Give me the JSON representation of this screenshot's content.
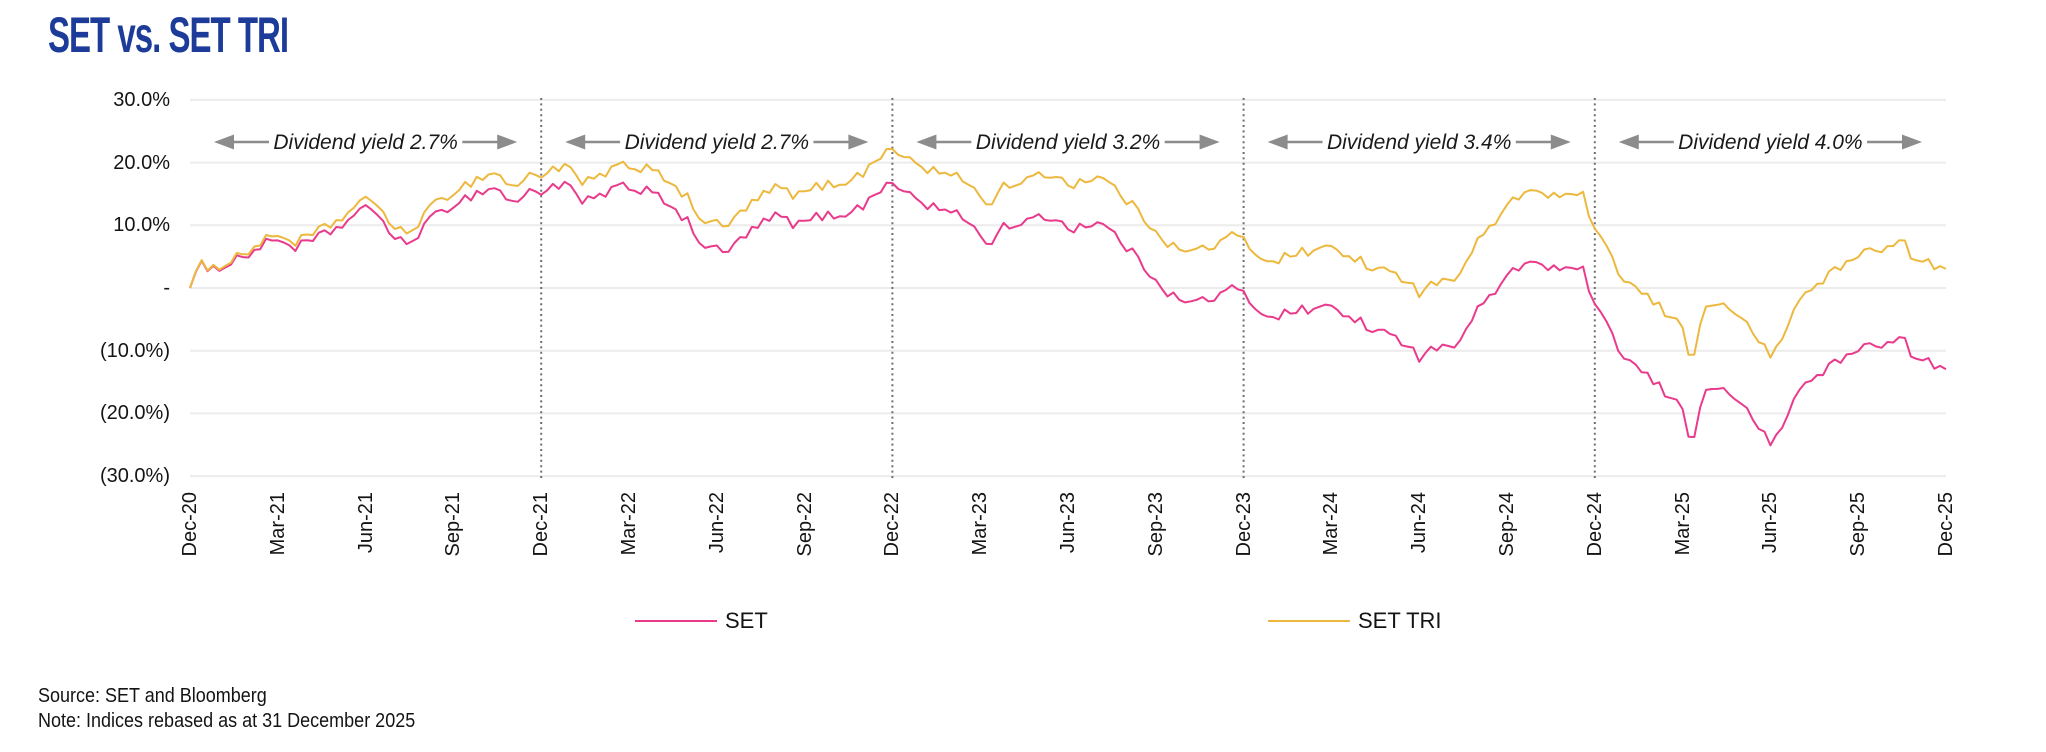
{
  "title": "SET vs. SET TRI",
  "footer": {
    "source": "Source: SET and Bloomberg",
    "note": "Note: Indices rebased as at 31 December 2025"
  },
  "legend": [
    {
      "label": "SET",
      "color": "#e93a8c"
    },
    {
      "label": "SET TRI",
      "color": "#edb83e"
    }
  ],
  "colors": {
    "title": "#1d3c99",
    "set_line": "#e93a8c",
    "set_tri_line": "#edb83e",
    "gridline": "#ececec",
    "separator": "#6e6e6e",
    "arrow": "#8c8c8c"
  },
  "chart_data": {
    "type": "line",
    "title": "SET vs. SET TRI",
    "x_unit": "months since Dec-2020",
    "x_range_months": [
      0,
      60
    ],
    "ylim": [
      -30,
      30
    ],
    "grid": "horizontal",
    "legend_position": "bottom",
    "y_ticks": [
      {
        "label": "30.0%",
        "value": 30
      },
      {
        "label": "20.0%",
        "value": 20
      },
      {
        "label": "10.0%",
        "value": 10
      },
      {
        "label": "-",
        "value": 0
      },
      {
        "label": "(10.0%)",
        "value": -10
      },
      {
        "label": "(20.0%)",
        "value": -20
      },
      {
        "label": "(30.0%)",
        "value": -30
      }
    ],
    "x_tick_labels": [
      "Dec-20",
      "Mar-21",
      "Jun-21",
      "Sep-21",
      "Dec-21",
      "Mar-22",
      "Jun-22",
      "Sep-22",
      "Dec-22",
      "Mar-23",
      "Jun-23",
      "Sep-23",
      "Dec-23",
      "Mar-24",
      "Jun-24",
      "Sep-24",
      "Dec-24",
      "Mar-25",
      "Jun-25",
      "Sep-25",
      "Dec-25"
    ],
    "separators_months": [
      12,
      24,
      36,
      48
    ],
    "annotations": [
      {
        "label": "Dividend yield 2.7%",
        "from_month": 0,
        "to_month": 12
      },
      {
        "label": "Dividend yield 2.7%",
        "from_month": 12,
        "to_month": 24
      },
      {
        "label": "Dividend yield 3.2%",
        "from_month": 24,
        "to_month": 36
      },
      {
        "label": "Dividend yield 3.4%",
        "from_month": 36,
        "to_month": 48
      },
      {
        "label": "Dividend yield 4.0%",
        "from_month": 48,
        "to_month": 60
      }
    ],
    "series": [
      {
        "name": "SET",
        "color": "#e93a8c",
        "points": [
          [
            0,
            0
          ],
          [
            0.3,
            5
          ],
          [
            0.6,
            2
          ],
          [
            1,
            3.5
          ],
          [
            2,
            5.5
          ],
          [
            3,
            8
          ],
          [
            3.5,
            6.5
          ],
          [
            4,
            7
          ],
          [
            5,
            9.5
          ],
          [
            5.8,
            12
          ],
          [
            6.3,
            13
          ],
          [
            7,
            7.5
          ],
          [
            7.5,
            7
          ],
          [
            8,
            10
          ],
          [
            9,
            13.5
          ],
          [
            10,
            15.5
          ],
          [
            10.5,
            16
          ],
          [
            11,
            13.5
          ],
          [
            11.7,
            15.5
          ],
          [
            12,
            15.5
          ],
          [
            12.5,
            16.5
          ],
          [
            13,
            16
          ],
          [
            13.4,
            13.5
          ],
          [
            14,
            14.5
          ],
          [
            14.7,
            16.5
          ],
          [
            15,
            15
          ],
          [
            15.5,
            16
          ],
          [
            16,
            15.5
          ],
          [
            16.5,
            12
          ],
          [
            17,
            10.5
          ],
          [
            17.5,
            7
          ],
          [
            18,
            6
          ],
          [
            18.3,
            5.5
          ],
          [
            19,
            8.5
          ],
          [
            20,
            11.5
          ],
          [
            20.8,
            10
          ],
          [
            21.5,
            11.5
          ],
          [
            22,
            11.5
          ],
          [
            23,
            13
          ],
          [
            23.8,
            17
          ],
          [
            24,
            16
          ],
          [
            24.5,
            15.5
          ],
          [
            25,
            13.5
          ],
          [
            26,
            12
          ],
          [
            26.5,
            11
          ],
          [
            27,
            9
          ],
          [
            27.3,
            5.5
          ],
          [
            27.6,
            9.5
          ],
          [
            28,
            10
          ],
          [
            29,
            11
          ],
          [
            29.5,
            11.5
          ],
          [
            30,
            9.5
          ],
          [
            31,
            10.5
          ],
          [
            31.5,
            9
          ],
          [
            32,
            6.5
          ],
          [
            33,
            1.5
          ],
          [
            33.5,
            -1
          ],
          [
            34,
            -2.5
          ],
          [
            35,
            -1.5
          ],
          [
            35.7,
            0
          ],
          [
            36,
            -1
          ],
          [
            36.5,
            -3.5
          ],
          [
            37,
            -4.5
          ],
          [
            38,
            -3.5
          ],
          [
            39,
            -3
          ],
          [
            39.5,
            -4.5
          ],
          [
            40,
            -5
          ],
          [
            40.3,
            -8
          ],
          [
            41,
            -6.5
          ],
          [
            42,
            -11
          ],
          [
            42.5,
            -9
          ],
          [
            43,
            -10
          ],
          [
            43.5,
            -7
          ],
          [
            44,
            -3.5
          ],
          [
            45,
            1.5
          ],
          [
            45.7,
            4.5
          ],
          [
            46,
            4
          ],
          [
            47,
            2.5
          ],
          [
            47.5,
            4
          ],
          [
            48,
            -3
          ],
          [
            49,
            -11
          ],
          [
            50,
            -15
          ],
          [
            50.7,
            -18
          ],
          [
            51,
            -19
          ],
          [
            51.3,
            -25
          ],
          [
            51.8,
            -16
          ],
          [
            52,
            -16.5
          ],
          [
            52.4,
            -15.5
          ],
          [
            53,
            -19
          ],
          [
            53.5,
            -21
          ],
          [
            54,
            -25.5
          ],
          [
            54.3,
            -23
          ],
          [
            55,
            -16
          ],
          [
            56,
            -12.5
          ],
          [
            57,
            -10
          ],
          [
            57.5,
            -8.5
          ],
          [
            58,
            -9
          ],
          [
            58.5,
            -8
          ],
          [
            59,
            -11.5
          ],
          [
            59.5,
            -12
          ],
          [
            60,
            -13
          ]
        ]
      },
      {
        "name": "SET TRI",
        "color": "#edb83e",
        "points": [
          [
            0,
            0
          ],
          [
            0.3,
            5.1
          ],
          [
            0.6,
            2.1
          ],
          [
            1,
            3.7
          ],
          [
            2,
            6
          ],
          [
            3,
            8.7
          ],
          [
            3.5,
            7.3
          ],
          [
            4,
            7.9
          ],
          [
            5,
            10.6
          ],
          [
            5.8,
            13.3
          ],
          [
            6.3,
            14.4
          ],
          [
            7,
            9.1
          ],
          [
            7.5,
            8.7
          ],
          [
            8,
            11.8
          ],
          [
            9,
            15.5
          ],
          [
            10,
            17.8
          ],
          [
            10.5,
            18.4
          ],
          [
            11,
            16
          ],
          [
            11.7,
            18.1
          ],
          [
            12,
            18.2
          ],
          [
            12.5,
            19.3
          ],
          [
            13,
            18.9
          ],
          [
            13.4,
            16.5
          ],
          [
            14,
            17.7
          ],
          [
            14.7,
            19.8
          ],
          [
            15,
            18.4
          ],
          [
            15.5,
            19.5
          ],
          [
            16,
            19.1
          ],
          [
            16.5,
            15.7
          ],
          [
            17,
            14.3
          ],
          [
            17.5,
            10.9
          ],
          [
            18,
            10.1
          ],
          [
            18.3,
            9.6
          ],
          [
            19,
            12.8
          ],
          [
            20,
            16
          ],
          [
            20.8,
            14.7
          ],
          [
            21.5,
            16.3
          ],
          [
            22,
            16.5
          ],
          [
            23,
            18.2
          ],
          [
            23.8,
            22.4
          ],
          [
            24,
            21.4
          ],
          [
            24.5,
            21
          ],
          [
            25,
            19.2
          ],
          [
            26,
            17.9
          ],
          [
            26.5,
            17.1
          ],
          [
            27,
            15.2
          ],
          [
            27.3,
            11.8
          ],
          [
            27.6,
            15.9
          ],
          [
            28,
            16.5
          ],
          [
            29,
            17.7
          ],
          [
            29.5,
            18.4
          ],
          [
            30,
            16.5
          ],
          [
            31,
            17.8
          ],
          [
            31.5,
            16.4
          ],
          [
            32,
            14
          ],
          [
            33,
            9.3
          ],
          [
            33.5,
            6.9
          ],
          [
            34,
            5.6
          ],
          [
            35,
            6.8
          ],
          [
            35.7,
            8.5
          ],
          [
            36,
            7.6
          ],
          [
            36.5,
            5.2
          ],
          [
            37,
            4.4
          ],
          [
            38,
            5.7
          ],
          [
            39,
            6.5
          ],
          [
            39.5,
            5.1
          ],
          [
            40,
            4.7
          ],
          [
            40.3,
            1.8
          ],
          [
            41,
            3.5
          ],
          [
            42,
            -0.7
          ],
          [
            42.5,
            1.4
          ],
          [
            43,
            0.6
          ],
          [
            43.5,
            3.7
          ],
          [
            44,
            7.4
          ],
          [
            45,
            12.7
          ],
          [
            45.7,
            15.9
          ],
          [
            46,
            15.4
          ],
          [
            47,
            14.2
          ],
          [
            47.5,
            15.9
          ],
          [
            48,
            9
          ],
          [
            49,
            1.3
          ],
          [
            50,
            -2.3
          ],
          [
            50.7,
            -5.1
          ],
          [
            51,
            -6
          ],
          [
            51.3,
            -11.9
          ],
          [
            51.8,
            -2.7
          ],
          [
            52,
            -3.2
          ],
          [
            52.4,
            -2
          ],
          [
            53,
            -5.3
          ],
          [
            53.5,
            -7.2
          ],
          [
            54,
            -11.5
          ],
          [
            54.3,
            -8.9
          ],
          [
            55,
            -1.7
          ],
          [
            56,
            2.2
          ],
          [
            57,
            5
          ],
          [
            57.5,
            6.7
          ],
          [
            58,
            6.3
          ],
          [
            58.5,
            7.5
          ],
          [
            59,
            4.2
          ],
          [
            59.5,
            3.8
          ],
          [
            60,
            3
          ]
        ]
      }
    ]
  }
}
